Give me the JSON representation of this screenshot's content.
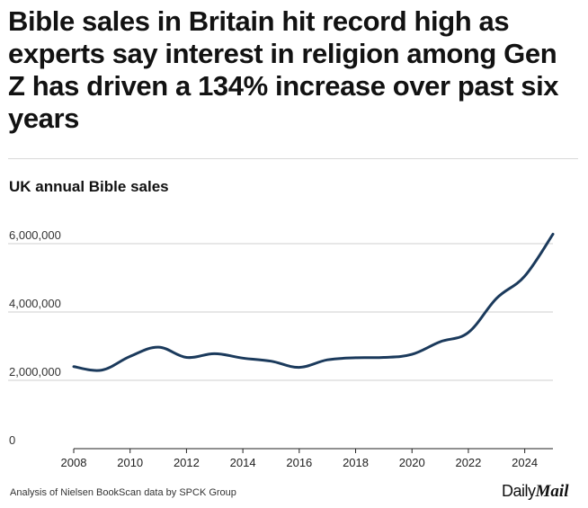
{
  "headline": "Bible sales in Britain hit record high as experts say interest in religion among Gen Z has driven a 134% increase over past six years",
  "chart_data": {
    "type": "line",
    "title": "UK annual Bible sales",
    "xlabel": "",
    "ylabel": "",
    "xlim": [
      2008,
      2025
    ],
    "ylim": [
      0,
      6500000
    ],
    "y_ticks": [
      0,
      2000000,
      4000000,
      6000000
    ],
    "y_tick_labels": [
      "0",
      "2,000,000",
      "4,000,000",
      "6,000,000"
    ],
    "x_ticks": [
      2008,
      2010,
      2012,
      2014,
      2016,
      2018,
      2020,
      2022,
      2024
    ],
    "x_tick_labels": [
      "2008",
      "2010",
      "2012",
      "2014",
      "2016",
      "2018",
      "2020",
      "2022",
      "2024"
    ],
    "grid": "horizontal",
    "series": [
      {
        "name": "UK annual Bible sales",
        "color": "#1b3a5c",
        "x": [
          2008,
          2009,
          2010,
          2011,
          2012,
          2013,
          2014,
          2015,
          2016,
          2017,
          2018,
          2019,
          2020,
          2021,
          2022,
          2023,
          2024,
          2025
        ],
        "values": [
          2400000,
          2300000,
          2700000,
          2970000,
          2670000,
          2780000,
          2650000,
          2560000,
          2380000,
          2600000,
          2660000,
          2670000,
          2760000,
          3130000,
          3400000,
          4400000,
          5050000,
          6280000
        ]
      }
    ]
  },
  "footer": {
    "source": "Analysis of Nielsen BookScan data by SPCK Group",
    "logo_daily": "Daily",
    "logo_mail": "Mail"
  }
}
